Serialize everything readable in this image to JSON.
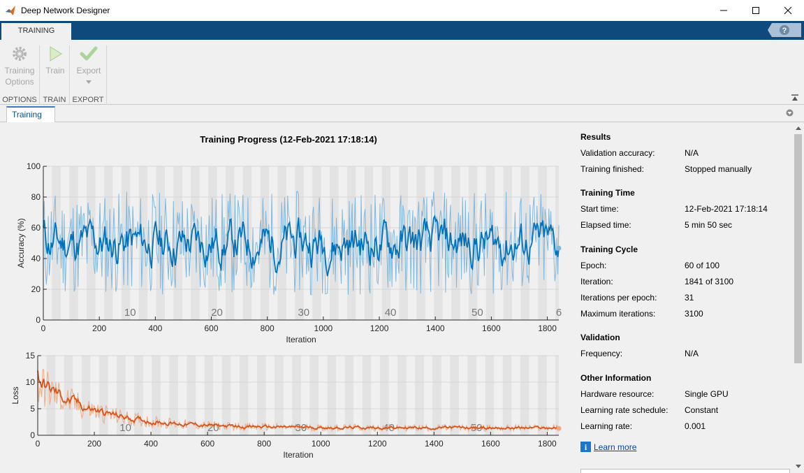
{
  "window": {
    "title": "Deep Network Designer"
  },
  "tabstrip": {
    "active_tab": "TRAINING",
    "help_glyph": "?"
  },
  "toolstrip": {
    "groups": [
      {
        "label": "OPTIONS",
        "buttons": [
          {
            "line1": "Training",
            "line2": "Options",
            "icon": "gear-icon"
          }
        ]
      },
      {
        "label": "TRAIN",
        "buttons": [
          {
            "line1": "Train",
            "line2": "",
            "icon": "play-icon"
          }
        ]
      },
      {
        "label": "EXPORT",
        "buttons": [
          {
            "line1": "Export",
            "line2": "",
            "icon": "check-icon"
          }
        ]
      }
    ]
  },
  "doc_tab": {
    "label": "Training"
  },
  "plot_title": "Training Progress (12-Feb-2021 17:18:14)",
  "info": {
    "results": {
      "title": "Results",
      "rows": [
        {
          "label": "Validation accuracy:",
          "value": "N/A"
        },
        {
          "label": "Training finished:",
          "value": "Stopped manually"
        }
      ]
    },
    "time": {
      "title": "Training Time",
      "rows": [
        {
          "label": "Start time:",
          "value": "12-Feb-2021 17:18:14"
        },
        {
          "label": "Elapsed time:",
          "value": "5 min 50 sec"
        }
      ]
    },
    "cycle": {
      "title": "Training Cycle",
      "rows": [
        {
          "label": "Epoch:",
          "value": "60 of 100"
        },
        {
          "label": "Iteration:",
          "value": "1841 of 3100"
        },
        {
          "label": "Iterations per epoch:",
          "value": "31"
        },
        {
          "label": "Maximum iterations:",
          "value": "3100"
        }
      ]
    },
    "validation": {
      "title": "Validation",
      "rows": [
        {
          "label": "Frequency:",
          "value": "N/A"
        }
      ]
    },
    "other": {
      "title": "Other Information",
      "rows": [
        {
          "label": "Hardware resource:",
          "value": "Single GPU"
        },
        {
          "label": "Learning rate schedule:",
          "value": "Constant"
        },
        {
          "label": "Learning rate:",
          "value": "0.001"
        }
      ]
    },
    "learn_more": "Learn more"
  },
  "colors": {
    "accuracy": "#0072bd",
    "accuracy_light": "#7fb8e0",
    "loss": "#d95319",
    "loss_light": "#f0a982",
    "epoch_band": "#e3e3e3",
    "toolstrip_blue": "#0e4b7c"
  },
  "chart_data": [
    {
      "type": "line",
      "ylabel": "Accuracy (%)",
      "xlabel": "Iteration",
      "xlim": [
        0,
        1841
      ],
      "ylim": [
        0,
        100
      ],
      "xticks": [
        0,
        200,
        400,
        600,
        800,
        1000,
        1200,
        1400,
        1600,
        1800
      ],
      "yticks": [
        0,
        20,
        40,
        60,
        80,
        100
      ],
      "epoch_labels": [
        10,
        20,
        30,
        40,
        50,
        6
      ],
      "series": [
        {
          "values_summary": "raw per-iteration accuracy oscillating 10–95, smoothed ~50"
        }
      ]
    },
    {
      "type": "line",
      "ylabel": "Loss",
      "xlabel": "Iteration",
      "xlim": [
        0,
        1841
      ],
      "ylim": [
        0,
        15
      ],
      "xticks": [
        0,
        200,
        400,
        600,
        800,
        1000,
        1200,
        1400,
        1600,
        1800
      ],
      "yticks": [
        0,
        5,
        10,
        15
      ],
      "epoch_labels": [
        10,
        20,
        30,
        40,
        50
      ],
      "series": [
        {
          "values_summary": "loss starting ~10, decaying to ~1.5"
        }
      ]
    }
  ]
}
